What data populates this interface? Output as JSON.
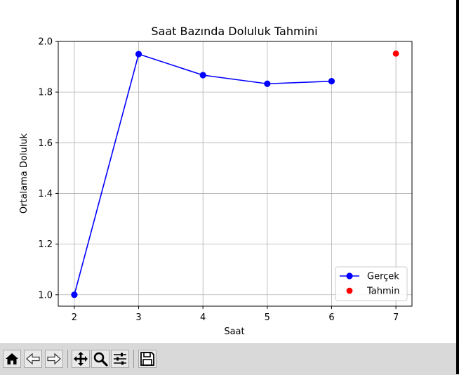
{
  "chart_data": {
    "type": "line",
    "title": "Saat Bazında Doluluk Tahmini",
    "xlabel": "Saat",
    "ylabel": "Ortalama Doluluk",
    "xlim": [
      1.75,
      7.25
    ],
    "ylim": [
      0.955,
      2.0
    ],
    "xticks": [
      2,
      3,
      4,
      5,
      6,
      7
    ],
    "xtick_labels": [
      "2",
      "3",
      "4",
      "5",
      "6",
      "7"
    ],
    "yticks": [
      1.0,
      1.2,
      1.4,
      1.6,
      1.8,
      2.0
    ],
    "ytick_labels": [
      "1.0",
      "1.2",
      "1.4",
      "1.6",
      "1.8",
      "2.0"
    ],
    "grid": true,
    "legend_position": "lower-right",
    "series": [
      {
        "name": "Gerçek",
        "kind": "line-marker",
        "color": "#0000ff",
        "x": [
          2,
          3,
          4,
          5,
          6
        ],
        "y": [
          1.0,
          1.95,
          1.867,
          1.833,
          1.843
        ]
      },
      {
        "name": "Tahmin",
        "kind": "scatter",
        "color": "#ff0000",
        "x": [
          7
        ],
        "y": [
          1.952
        ]
      }
    ]
  },
  "toolbar": {
    "items": [
      {
        "name": "home-button",
        "icon": "home-icon"
      },
      {
        "name": "back-button",
        "icon": "back-arrow-icon"
      },
      {
        "name": "forward-button",
        "icon": "forward-arrow-icon"
      },
      {
        "name": "pan-button",
        "icon": "move-icon"
      },
      {
        "name": "zoom-button",
        "icon": "magnifier-icon"
      },
      {
        "name": "configure-subplots-button",
        "icon": "sliders-icon"
      },
      {
        "name": "save-button",
        "icon": "floppy-disk-icon"
      }
    ]
  }
}
